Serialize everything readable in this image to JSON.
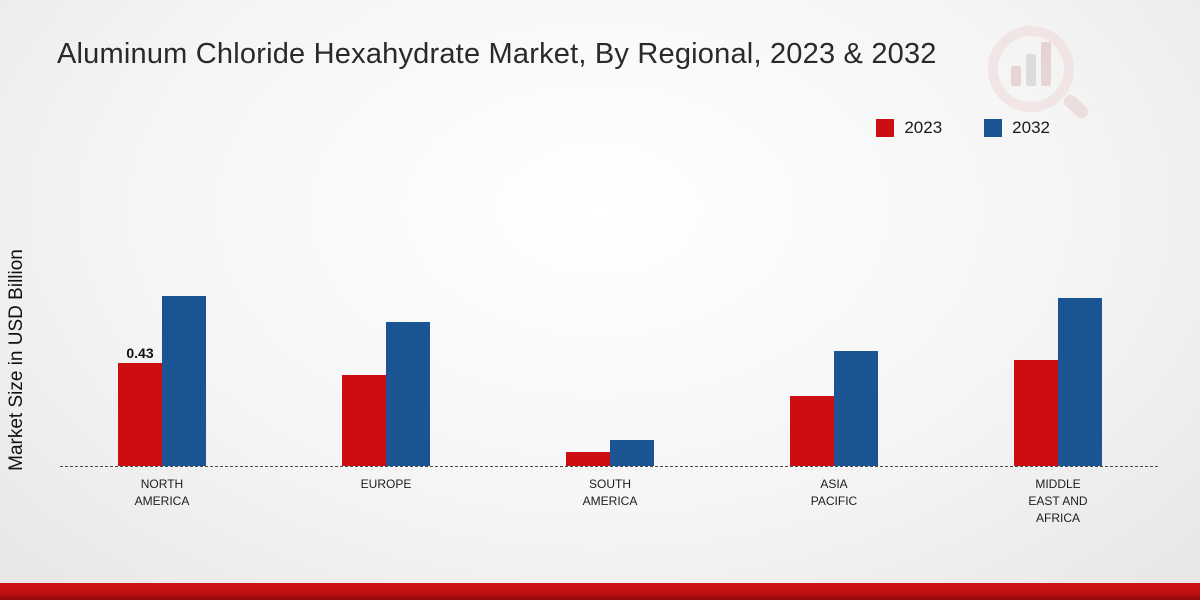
{
  "title": "Aluminum Chloride Hexahydrate Market, By Regional, 2023 & 2032",
  "y_axis_label": "Market Size in USD Billion",
  "legend": [
    {
      "label": "2023",
      "color": "#cc0e13"
    },
    {
      "label": "2032",
      "color": "#1a5493"
    }
  ],
  "colors": {
    "series_2023": "#cc0e13",
    "series_2032": "#1a5493",
    "bottom_band": "#c00e12"
  },
  "chart_data": {
    "type": "bar",
    "title": "Aluminum Chloride Hexahydrate Market, By Regional, 2023 & 2032",
    "categories": [
      "NORTH AMERICA",
      "EUROPE",
      "SOUTH AMERICA",
      "ASIA PACIFIC",
      "MIDDLE EAST AND AFRICA"
    ],
    "series": [
      {
        "name": "2023",
        "color": "#cc0e13",
        "values": [
          0.43,
          0.38,
          0.06,
          0.29,
          0.44
        ]
      },
      {
        "name": "2032",
        "color": "#1a5493",
        "values": [
          0.71,
          0.6,
          0.11,
          0.48,
          0.7
        ]
      }
    ],
    "xlabel": "",
    "ylabel": "Market Size in USD Billion",
    "ylim": [
      0,
      0.8
    ],
    "grid": false,
    "baseline_style": "dashed",
    "legend_position": "top-right",
    "data_labels": [
      {
        "series": "2023",
        "category": "NORTH AMERICA",
        "value": "0.43"
      }
    ]
  }
}
